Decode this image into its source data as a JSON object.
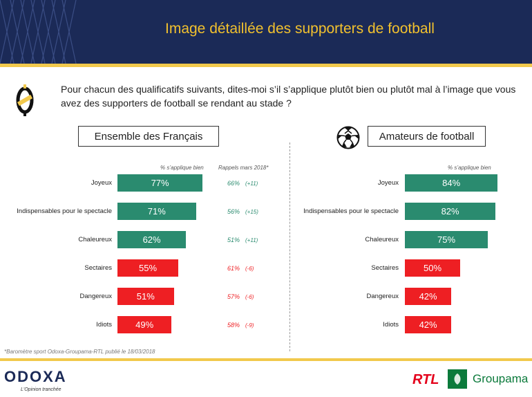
{
  "header": {
    "title": "Image détaillée des supporters de football"
  },
  "question": "Pour chacun des qualificatifs suivants, dites-moi s’il s’applique plutôt bien ou plutôt mal à l’image que vous avez des supporters de football se rendant au stade ?",
  "colors": {
    "header_bg": "#1b2a57",
    "gold": "#f2c94c",
    "positive": "#2a8b6f",
    "negative": "#ee1f23"
  },
  "chart_data": [
    {
      "type": "bar",
      "title": "Ensemble des Français",
      "value_header": "% s’applique bien",
      "recall_header": "Rappels mars 2018*",
      "categories": [
        "Joyeux",
        "Indispensables pour le spectacle",
        "Chaleureux",
        "Sectaires",
        "Dangereux",
        "Idiots"
      ],
      "values": [
        77,
        71,
        62,
        55,
        51,
        49
      ],
      "value_labels": [
        "77%",
        "71%",
        "62%",
        "55%",
        "51%",
        "49%"
      ],
      "bar_colors": [
        "#2a8b6f",
        "#2a8b6f",
        "#2a8b6f",
        "#ee1f23",
        "#ee1f23",
        "#ee1f23"
      ],
      "recall_values": [
        "66%",
        "56%",
        "51%",
        "61%",
        "57%",
        "58%"
      ],
      "recall_deltas": [
        "(+11)",
        "(+15)",
        "(+11)",
        "(-6)",
        "(-6)",
        "(-9)"
      ],
      "recall_colors": [
        "#2a8b6f",
        "#2a8b6f",
        "#2a8b6f",
        "#ee1f23",
        "#ee1f23",
        "#ee1f23"
      ],
      "xlim": [
        0,
        100
      ]
    },
    {
      "type": "bar",
      "title": "Amateurs de football",
      "value_header": "% s’applique bien",
      "categories": [
        "Joyeux",
        "Indispensables pour le spectacle",
        "Chaleureux",
        "Sectaires",
        "Dangereux",
        "Idiots"
      ],
      "values": [
        84,
        82,
        75,
        50,
        42,
        42
      ],
      "value_labels": [
        "84%",
        "82%",
        "75%",
        "50%",
        "42%",
        "42%"
      ],
      "bar_colors": [
        "#2a8b6f",
        "#2a8b6f",
        "#2a8b6f",
        "#ee1f23",
        "#ee1f23",
        "#ee1f23"
      ],
      "xlim": [
        0,
        100
      ]
    }
  ],
  "footnote": "*Baromètre sport Odoxa-Groupama-RTL publié le 18/03/2018",
  "footer": {
    "odoxa": "ODOXA",
    "odoxa_tagline": "L'Opinion tranchée",
    "rtl": "RTL",
    "groupama": "Groupama"
  }
}
